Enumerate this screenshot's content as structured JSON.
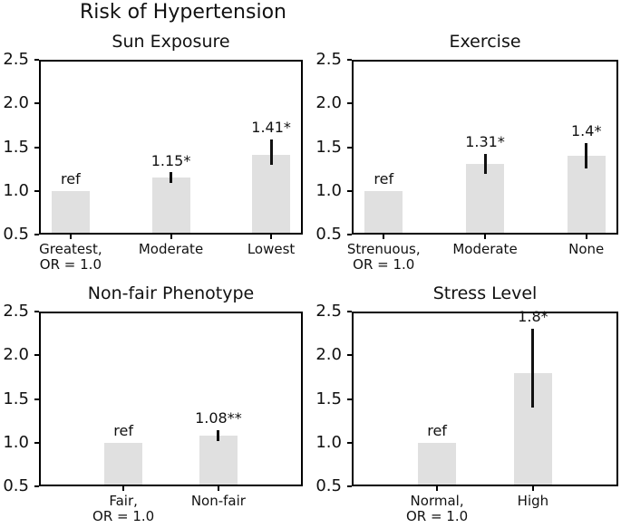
{
  "figure": {
    "title": "Risk of Hypertension"
  },
  "colors": {
    "bar_fill": "#e0e0e0",
    "error_bar": "#111111",
    "axis": "#000000",
    "text": "#111111",
    "background": "#ffffff"
  },
  "chart_data": [
    {
      "type": "bar",
      "title": "Sun Exposure",
      "categories": [
        [
          "Greatest,",
          "OR = 1.0"
        ],
        [
          "Moderate"
        ],
        [
          "Lowest"
        ]
      ],
      "values": [
        1.0,
        1.15,
        1.41
      ],
      "bar_labels": [
        "ref",
        "1.15*",
        "1.41*"
      ],
      "error_low": [
        null,
        1.09,
        1.3
      ],
      "error_high": [
        null,
        1.21,
        1.59
      ],
      "ylim": [
        0.5,
        2.5
      ],
      "ytick_labels": [
        "0.5",
        "1.0",
        "1.5",
        "2.0",
        "2.5"
      ],
      "yticks": [
        0.5,
        1.0,
        1.5,
        2.0,
        2.5
      ],
      "grid": false,
      "legend": null
    },
    {
      "type": "bar",
      "title": "Exercise",
      "categories": [
        [
          "Strenuous,",
          "OR = 1.0"
        ],
        [
          "Moderate"
        ],
        [
          "None"
        ]
      ],
      "values": [
        1.0,
        1.31,
        1.4
      ],
      "bar_labels": [
        "ref",
        "1.31*",
        "1.4*"
      ],
      "error_low": [
        null,
        1.19,
        1.26
      ],
      "error_high": [
        null,
        1.42,
        1.55
      ],
      "ylim": [
        0.5,
        2.5
      ],
      "ytick_labels": [
        "0.5",
        "1.0",
        "1.5",
        "2.0",
        "2.5"
      ],
      "yticks": [
        0.5,
        1.0,
        1.5,
        2.0,
        2.5
      ],
      "grid": false,
      "legend": null
    },
    {
      "type": "bar",
      "title": "Non-fair Phenotype",
      "categories": [
        [
          "Fair,",
          "OR = 1.0"
        ],
        [
          "Non-fair"
        ]
      ],
      "values": [
        1.0,
        1.08
      ],
      "bar_labels": [
        "ref",
        "1.08**"
      ],
      "error_low": [
        null,
        1.02
      ],
      "error_high": [
        null,
        1.14
      ],
      "ylim": [
        0.5,
        2.5
      ],
      "ytick_labels": [
        "0.5",
        "1.0",
        "1.5",
        "2.0",
        "2.5"
      ],
      "yticks": [
        0.5,
        1.0,
        1.5,
        2.0,
        2.5
      ],
      "grid": false,
      "legend": null
    },
    {
      "type": "bar",
      "title": "Stress Level",
      "categories": [
        [
          "Normal,",
          "OR = 1.0"
        ],
        [
          "High"
        ]
      ],
      "values": [
        1.0,
        1.8
      ],
      "bar_labels": [
        "ref",
        "1.8*"
      ],
      "error_low": [
        null,
        1.4
      ],
      "error_high": [
        null,
        2.3
      ],
      "ylim": [
        0.5,
        2.5
      ],
      "ytick_labels": [
        "0.5",
        "1.0",
        "1.5",
        "2.0",
        "2.5"
      ],
      "yticks": [
        0.5,
        1.0,
        1.5,
        2.0,
        2.5
      ],
      "grid": false,
      "legend": null
    }
  ]
}
